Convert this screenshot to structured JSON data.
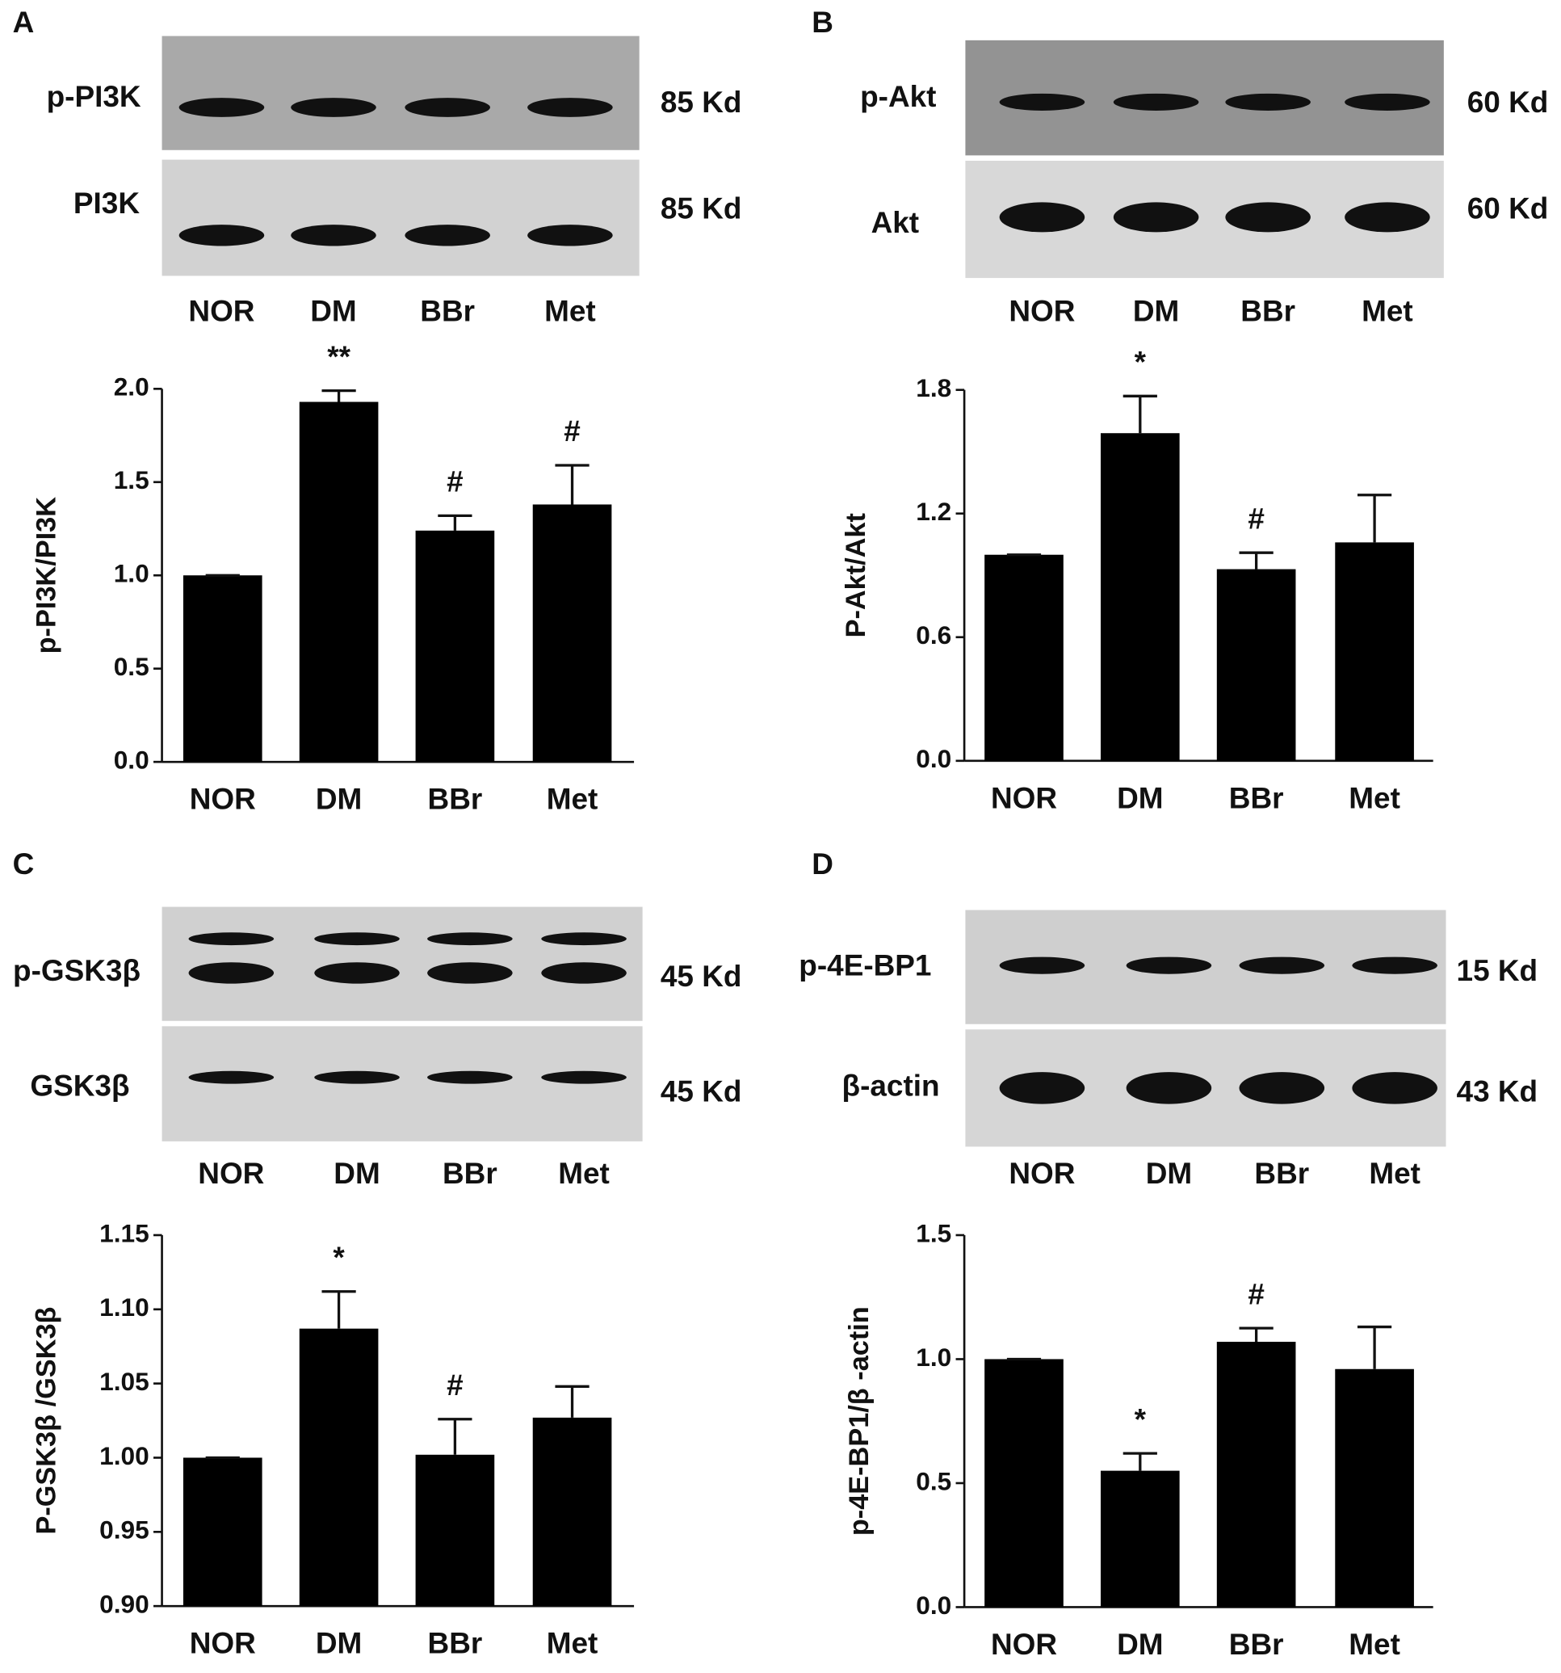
{
  "chart_data": [
    {
      "type": "bar",
      "panel_label": "A",
      "blot": {
        "rows": [
          {
            "label": "p-PI3K",
            "size": "85 Kd"
          },
          {
            "label": "PI3K",
            "size": "85 Kd"
          }
        ]
      },
      "ylabel": "p-PI3K/PI3K",
      "categories": [
        "NOR",
        "DM",
        "BBr",
        "Met"
      ],
      "values": [
        1.0,
        1.93,
        1.24,
        1.38
      ],
      "errors": [
        0,
        0.06,
        0.08,
        0.21
      ],
      "annotations": [
        null,
        "**",
        "#",
        "#"
      ],
      "color": "#000000",
      "ylim": [
        0,
        2.0
      ],
      "yticks": [
        {
          "value": 0,
          "label": "0.0"
        },
        0.5,
        {
          "value": 1,
          "label": "1.0"
        },
        1.5,
        {
          "value": 2,
          "label": "2.0"
        }
      ]
    },
    {
      "type": "bar",
      "panel_label": "B",
      "blot": {
        "rows": [
          {
            "label": "p-Akt",
            "size": "60 Kd"
          },
          {
            "label": "Akt",
            "size": "60 Kd"
          }
        ]
      },
      "ylabel": "P-Akt/Akt",
      "categories": [
        "NOR",
        "DM",
        "BBr",
        "Met"
      ],
      "values": [
        1.0,
        1.59,
        0.93,
        1.06
      ],
      "errors": [
        0,
        0.18,
        0.08,
        0.23
      ],
      "annotations": [
        null,
        "*",
        "#",
        null
      ],
      "color": "#000000",
      "ylim": [
        0,
        1.8
      ],
      "yticks": [
        {
          "value": 0,
          "label": "0.0"
        },
        0.6,
        1.2,
        1.8
      ]
    },
    {
      "type": "bar",
      "panel_label": "C",
      "blot": {
        "rows": [
          {
            "label": "p-GSK3β",
            "size": "45 Kd"
          },
          {
            "label": "GSK3β",
            "size": "45 Kd"
          }
        ]
      },
      "ylabel": "P-GSK3β /GSK3β",
      "categories": [
        "NOR",
        "DM",
        "BBr",
        "Met"
      ],
      "values": [
        1.0,
        1.087,
        1.002,
        1.027
      ],
      "errors": [
        0,
        0.025,
        0.024,
        0.021
      ],
      "annotations": [
        null,
        "*",
        "#",
        null
      ],
      "color": "#000000",
      "ylim": [
        0.9,
        1.15
      ],
      "yticks": [
        {
          "value": 0.9,
          "label": "0.90"
        },
        0.95,
        {
          "value": 1,
          "label": "1.00"
        },
        1.05,
        {
          "value": 1.1,
          "label": "1.10"
        },
        1.15
      ]
    },
    {
      "type": "bar",
      "panel_label": "D",
      "blot": {
        "rows": [
          {
            "label": "p-4E-BP1",
            "size": "15 Kd"
          },
          {
            "label": "β-actin",
            "size": "43 Kd"
          }
        ]
      },
      "ylabel": "p-4E-BP1/β -actin",
      "categories": [
        "NOR",
        "DM",
        "BBr",
        "Met"
      ],
      "values": [
        1.0,
        0.55,
        1.07,
        0.96
      ],
      "errors": [
        0,
        0.07,
        0.055,
        0.17
      ],
      "annotations": [
        null,
        "*",
        "#",
        null
      ],
      "color": "#000000",
      "ylim": [
        0,
        1.5
      ],
      "yticks": [
        {
          "value": 0,
          "label": "0.0"
        },
        0.5,
        {
          "value": 1,
          "label": "1.0"
        },
        1.5
      ]
    }
  ]
}
